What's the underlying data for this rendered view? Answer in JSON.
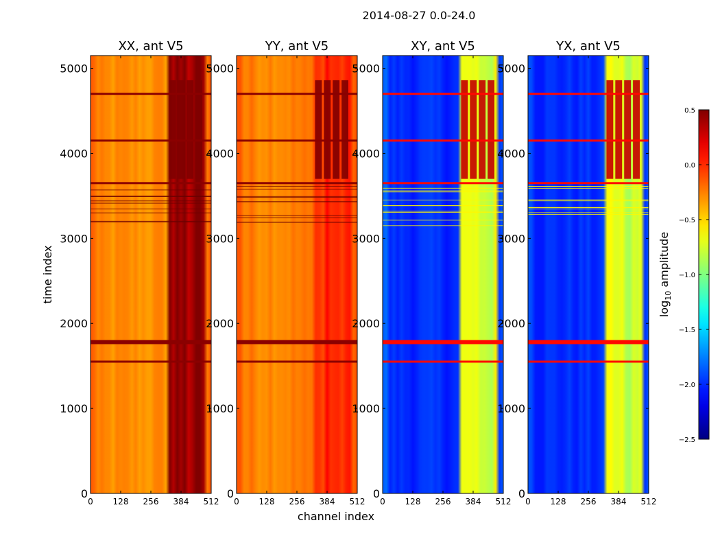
{
  "chart_data": {
    "type": "heatmap",
    "title": "2014-08-27 0.0-24.0",
    "xlabel": "channel index",
    "ylabel": "time index",
    "xlim": [
      0,
      512
    ],
    "ylim": [
      0,
      5150
    ],
    "xticks": [
      0,
      128,
      256,
      384,
      512
    ],
    "yticks": [
      0,
      1000,
      2000,
      3000,
      4000,
      5000
    ],
    "colorbar": {
      "label_prefix": "log",
      "label_sub": "10",
      "label_suffix": " amplitude",
      "range": [
        -2.5,
        0.5
      ],
      "ticks": [
        0.5,
        0.0,
        -0.5,
        -1.0,
        -1.5,
        -2.0,
        -2.5
      ],
      "tick_labels": [
        "0.5",
        "0.0",
        "−0.5",
        "−1.0",
        "−1.5",
        "−2.0",
        "−2.5"
      ],
      "colormap": "jet"
    },
    "panels": [
      {
        "title": "XX, ant V5",
        "base_level": -0.3,
        "band_level": 0.35,
        "upper_band_level": 0.5
      },
      {
        "title": "YY, ant V5",
        "base_level": -0.25,
        "band_level": -0.1,
        "upper_band_level": 0.5
      },
      {
        "title": "XY, ant V5",
        "base_level": -2.0,
        "band_level": -0.8,
        "upper_band_level": 0.3
      },
      {
        "title": "YX, ant V5",
        "base_level": -2.0,
        "band_level": -0.8,
        "upper_band_level": 0.3
      }
    ],
    "features": {
      "bright_channel_band": [
        330,
        480
      ],
      "strong_event_times": [
        1550,
        1780,
        3650,
        4150,
        4700
      ],
      "upper_block_times": [
        3700,
        4860
      ]
    }
  }
}
